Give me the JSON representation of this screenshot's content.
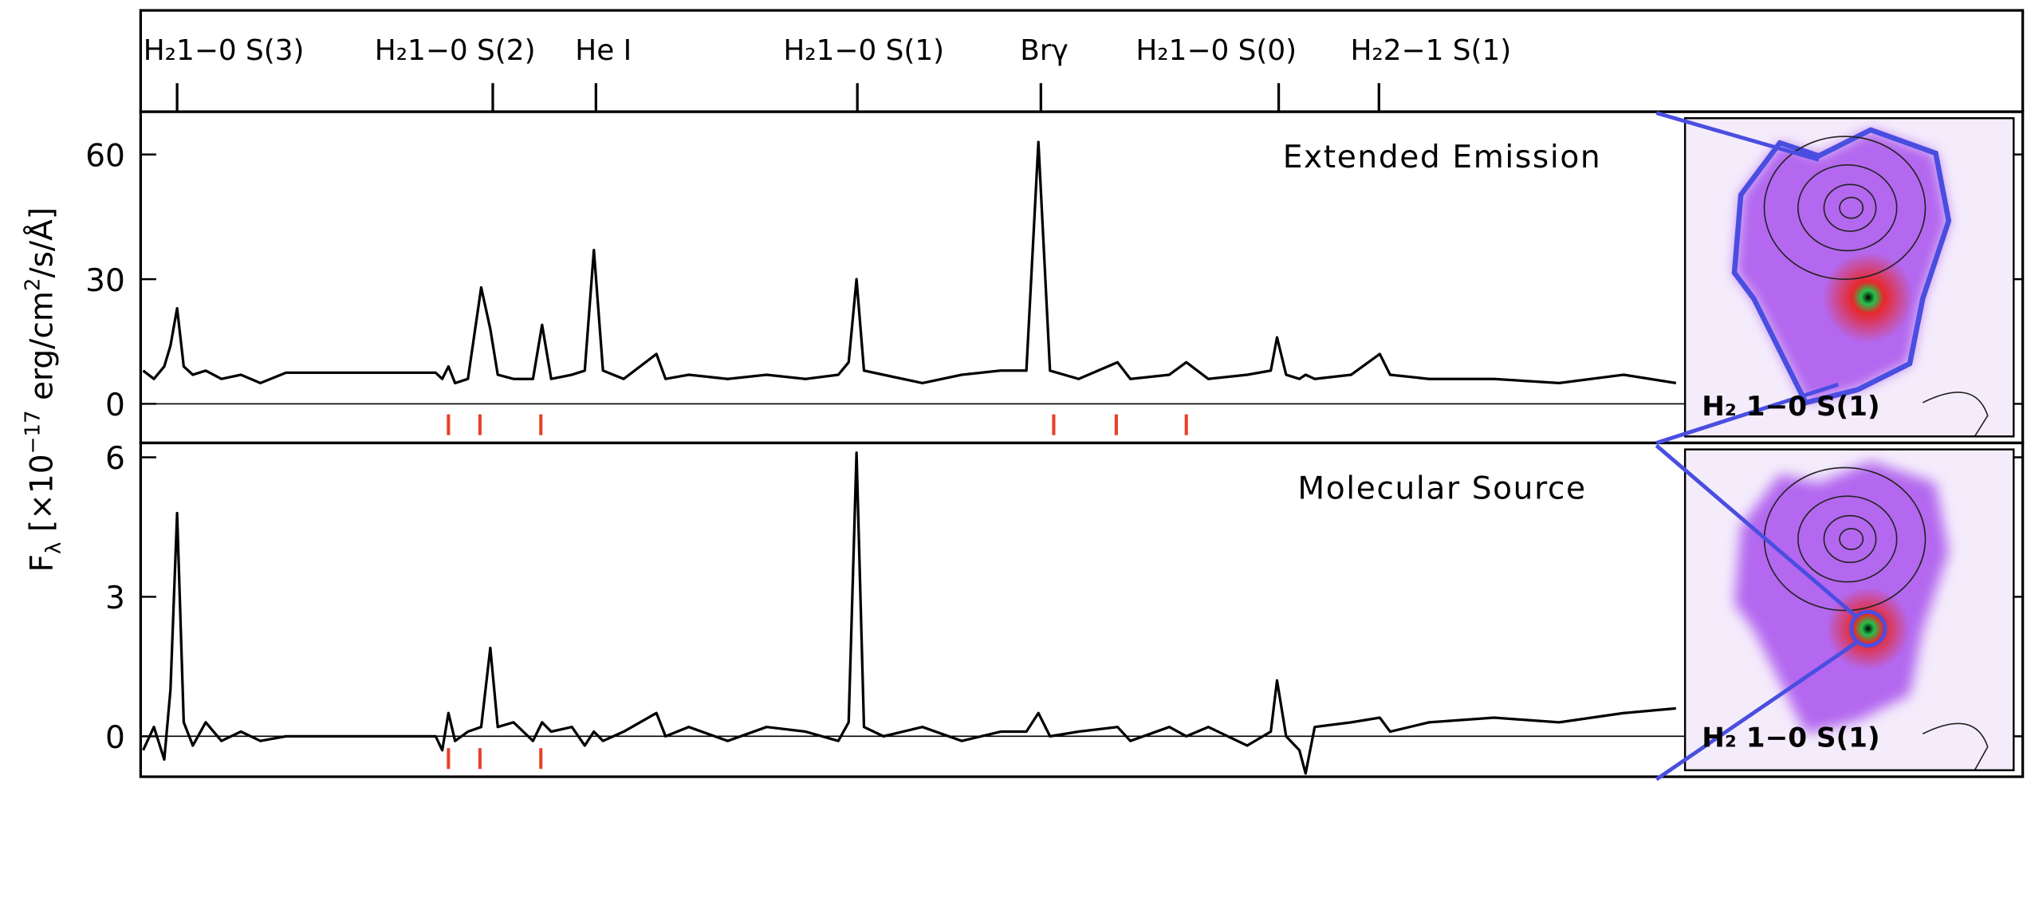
{
  "header": {
    "lines": [
      {
        "label": "H₂1−0 S(3)",
        "x": 1.9576
      },
      {
        "label": "H₂1−0 S(2)",
        "x": 2.0338
      },
      {
        "label": "He I",
        "x": 2.0587
      },
      {
        "label": "H₂1−0 S(1)",
        "x": 2.1218
      },
      {
        "label": "Brγ",
        "x": 2.1661
      },
      {
        "label": "H₂1−0 S(0)",
        "x": 2.2235
      },
      {
        "label": "H₂2−1 S(1)",
        "x": 2.2477
      }
    ]
  },
  "y_label": [
    "F",
    "λ",
    " [×10",
    "−17",
    " erg/cm",
    "2",
    "/s/Å]"
  ],
  "chart_data": [
    {
      "type": "line",
      "title": "Extended Emission",
      "x": [
        1.9494,
        1.952,
        1.9545,
        1.956,
        1.9576,
        1.9592,
        1.9614,
        1.9645,
        1.9683,
        1.973,
        1.9777,
        1.9839,
        2.02,
        2.0216,
        2.0231,
        2.0247,
        2.0278,
        2.031,
        2.0332,
        2.035,
        2.0388,
        2.0435,
        2.0457,
        2.0479,
        2.0529,
        2.056,
        2.0582,
        2.0604,
        2.0654,
        2.0733,
        2.0755,
        2.0811,
        2.0905,
        2.0999,
        2.1093,
        2.1172,
        2.1197,
        2.1216,
        2.1234,
        2.1281,
        2.1375,
        2.147,
        2.1564,
        2.1626,
        2.1655,
        2.1683,
        2.1752,
        2.1846,
        2.1877,
        2.1971,
        2.2012,
        2.2065,
        2.2159,
        2.2216,
        2.2231,
        2.2253,
        2.2285,
        2.23,
        2.2322,
        2.241,
        2.2479,
        2.2504,
        2.2598,
        2.2755,
        2.2912,
        2.3068,
        2.3194
      ],
      "series": [
        {
          "color": "#000000",
          "values": [
            8,
            6,
            9,
            14,
            23,
            9,
            7,
            8,
            6,
            7,
            5,
            7.5,
            7.5,
            6,
            9,
            5,
            6,
            28,
            18,
            7,
            6,
            6,
            19,
            6,
            7,
            8,
            37,
            8,
            6,
            12,
            6,
            7,
            6,
            7,
            6,
            7,
            10,
            30,
            8,
            7,
            5,
            7,
            8,
            8,
            63,
            8,
            6,
            10,
            6,
            7,
            10,
            6,
            7,
            8,
            16,
            7,
            6,
            7,
            6,
            7,
            12,
            7,
            6,
            6,
            5,
            7,
            5
          ]
        }
      ],
      "xlim": [
        1.9488,
        2.4031
      ],
      "ylim": [
        -9.4,
        70.3
      ],
      "yticks": [
        0,
        30,
        60
      ],
      "zero_line": true,
      "flag_x": [
        2.0231,
        2.0307,
        2.0454,
        2.1692,
        2.1843,
        2.2012
      ],
      "flag_color": "#e8402a"
    },
    {
      "type": "line",
      "title": "Molecular Source",
      "x": [
        1.9494,
        1.952,
        1.9545,
        1.956,
        1.9576,
        1.9592,
        1.9614,
        1.9645,
        1.9683,
        1.973,
        1.9777,
        1.9839,
        2.02,
        2.0216,
        2.0231,
        2.0247,
        2.0278,
        2.031,
        2.0332,
        2.035,
        2.0388,
        2.0435,
        2.0457,
        2.0479,
        2.0529,
        2.056,
        2.0582,
        2.0604,
        2.0654,
        2.0733,
        2.0755,
        2.0811,
        2.0905,
        2.0999,
        2.1093,
        2.1172,
        2.1197,
        2.1216,
        2.1234,
        2.1281,
        2.1375,
        2.147,
        2.1564,
        2.1626,
        2.1655,
        2.1683,
        2.1752,
        2.1846,
        2.1877,
        2.1971,
        2.2012,
        2.2065,
        2.2159,
        2.2216,
        2.2231,
        2.2253,
        2.2285,
        2.23,
        2.2322,
        2.241,
        2.2479,
        2.2504,
        2.2598,
        2.2755,
        2.2912,
        2.3068,
        2.3194
      ],
      "series": [
        {
          "color": "#000000",
          "values": [
            -0.3,
            0.2,
            -0.5,
            1.0,
            4.8,
            0.3,
            -0.2,
            0.3,
            -0.1,
            0.1,
            -0.1,
            0,
            0,
            -0.3,
            0.5,
            -0.1,
            0.1,
            0.2,
            1.9,
            0.2,
            0.3,
            -0.1,
            0.3,
            0.1,
            0.2,
            -0.2,
            0.1,
            -0.1,
            0.1,
            0.5,
            0,
            0.2,
            -0.1,
            0.2,
            0.1,
            -0.1,
            0.3,
            6.1,
            0.2,
            0,
            0.2,
            -0.1,
            0.1,
            0.1,
            0.5,
            0,
            0.1,
            0.2,
            -0.1,
            0.2,
            0,
            0.2,
            -0.2,
            0.1,
            1.2,
            0,
            -0.3,
            -0.8,
            0.2,
            0.3,
            0.4,
            0.1,
            0.3,
            0.4,
            0.3,
            0.5,
            0.6
          ]
        }
      ],
      "xlim": [
        1.9488,
        2.4031
      ],
      "ylim": [
        -0.87,
        6.31
      ],
      "yticks": [
        0,
        3,
        6
      ],
      "zero_line": true,
      "flag_x": [
        2.0231,
        2.0307,
        2.0454
      ],
      "flag_color": "#e8402a"
    }
  ],
  "insets": [
    {
      "label": "H₂ 1−0 S(1)"
    },
    {
      "label": "H₂ 1−0 S(1)"
    }
  ]
}
